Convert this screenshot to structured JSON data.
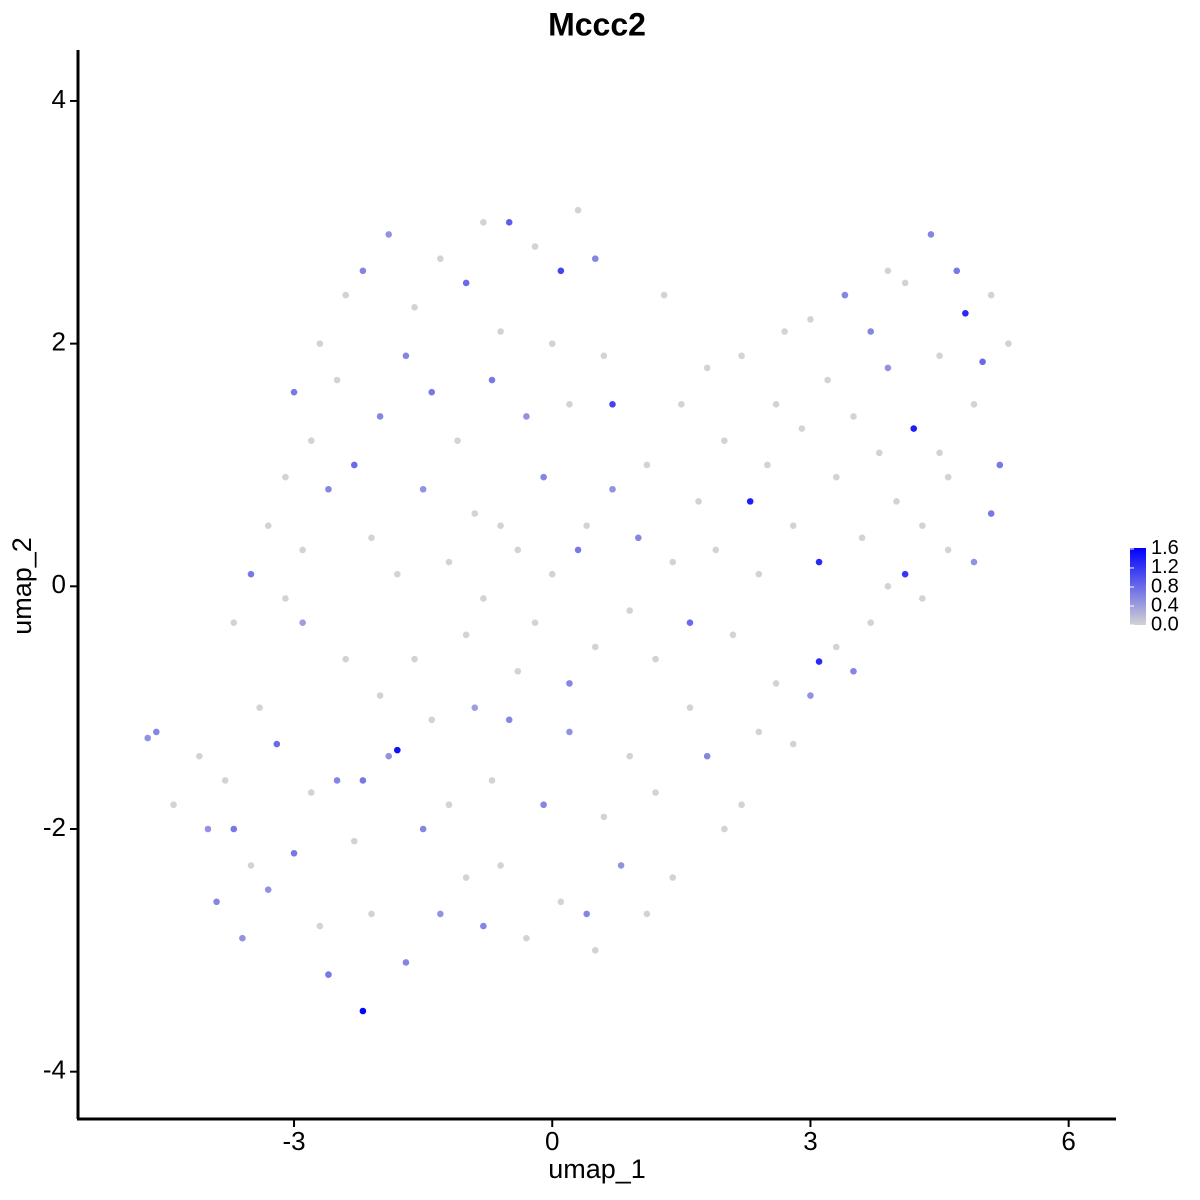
{
  "chart_data": {
    "type": "scatter",
    "title": "Mccc2",
    "x_label": "umap_1",
    "y_label": "umap_2",
    "xlim": [
      -5.51,
      6.55
    ],
    "xticks": [
      -3,
      0,
      3,
      6
    ],
    "ylim": [
      -4.39,
      4.42
    ],
    "yticks": [
      -4,
      -2,
      0,
      2,
      4
    ],
    "colorscale": [
      "#d3d3d3",
      "#0000ff"
    ],
    "clim": [
      0,
      1.62
    ],
    "cticks": [
      {
        "value": 0,
        "label": "0.0"
      },
      0.4,
      0.8,
      1.2,
      1.6
    ],
    "x": [
      -4.7,
      -4.6,
      -4.4,
      -4.1,
      -4.0,
      -3.9,
      -3.8,
      -3.7,
      -3.6,
      -3.5,
      -3.4,
      -3.3,
      -3.2,
      -3.1,
      -3.0,
      -2.9,
      -2.8,
      -2.7,
      -2.6,
      -2.5,
      -2.4,
      -2.3,
      -2.2,
      -2.2,
      -2.1,
      -2.0,
      -1.9,
      -1.8,
      -1.7,
      -1.6,
      -1.5,
      -1.4,
      -1.3,
      -1.2,
      -1.0,
      -0.9,
      -0.8,
      -0.7,
      -0.6,
      -0.5,
      -0.3,
      -0.1,
      0.1,
      0.2,
      0.4,
      0.5,
      0.6,
      0.8,
      0.9,
      1.1,
      1.2,
      1.4,
      1.6,
      1.8,
      2.0,
      2.2,
      2.4,
      2.6,
      2.8,
      3.0,
      3.1,
      3.3,
      3.5,
      3.7,
      3.9,
      4.1,
      4.3,
      4.6,
      4.9,
      5.1,
      -3.7,
      -3.5,
      -3.3,
      -3.1,
      -3.0,
      -2.9,
      -2.8,
      -2.7,
      -2.6,
      -2.5,
      -2.4,
      -2.3,
      -2.2,
      -2.1,
      -2.0,
      -1.9,
      -1.8,
      -1.7,
      -1.6,
      -1.5,
      -1.4,
      -1.3,
      -1.2,
      -1.1,
      -1.0,
      -0.9,
      -0.8,
      -0.7,
      -0.6,
      -0.5,
      -0.4,
      -0.3,
      -0.2,
      -0.1,
      0.0,
      0.1,
      0.2,
      0.3,
      0.4,
      0.5,
      0.6,
      0.7,
      -1.0,
      -0.8,
      -0.6,
      -0.4,
      -0.2,
      0,
      0.2,
      0.3,
      0.5,
      0.7,
      0.9,
      1.0,
      1.1,
      1.2,
      1.3,
      1.4,
      1.5,
      1.6,
      1.7,
      1.8,
      1.9,
      2.0,
      2.1,
      2.2,
      2.3,
      2.4,
      2.5,
      2.6,
      2.7,
      2.8,
      2.9,
      3.0,
      3.1,
      3.2,
      3.3,
      3.4,
      3.5,
      3.6,
      3.7,
      3.8,
      3.9,
      4.0,
      4.1,
      4.2,
      4.3,
      4.4,
      4.5,
      4.6,
      4.7,
      4.8,
      4.9,
      5.0,
      5.1,
      5.2,
      5.3,
      4.5,
      3.9
    ],
    "y": [
      -1.25,
      -1.2,
      -1.8,
      -1.4,
      -2.0,
      -2.6,
      -1.6,
      -2.0,
      -2.9,
      -2.3,
      -1.0,
      -2.5,
      -1.3,
      -0.1,
      -2.2,
      -0.3,
      -1.7,
      -2.8,
      -3.2,
      -1.6,
      -0.6,
      -2.1,
      -3.5,
      -1.6,
      -2.7,
      -0.9,
      -1.4,
      -1.35,
      -3.1,
      -0.6,
      -2.0,
      -1.1,
      -2.7,
      -1.8,
      -2.4,
      -1.0,
      -2.8,
      -1.6,
      -2.3,
      -1.1,
      -2.9,
      -1.8,
      -2.6,
      -1.2,
      -2.7,
      -3.0,
      -1.9,
      -2.3,
      -1.4,
      -2.7,
      -1.7,
      -2.4,
      -1.0,
      -1.4,
      -2.0,
      -1.8,
      -1.2,
      -0.8,
      -1.3,
      -0.9,
      -0.62,
      -0.5,
      -0.7,
      -0.3,
      0,
      0.1,
      -0.1,
      0.3,
      0.2,
      0.6,
      -0.3,
      0.1,
      0.5,
      0.9,
      1.6,
      0.3,
      1.2,
      2.0,
      0.8,
      1.7,
      2.4,
      1.0,
      2.6,
      0.4,
      1.4,
      2.9,
      0.1,
      1.9,
      2.3,
      0.8,
      1.6,
      2.7,
      0.2,
      1.2,
      2.5,
      0.6,
      3.0,
      1.7,
      2.1,
      3.0,
      0.3,
      1.4,
      2.8,
      0.9,
      2.0,
      2.6,
      1.5,
      3.1,
      0.5,
      2.7,
      1.9,
      1.5,
      -0.4,
      -0.1,
      0.5,
      -0.7,
      -0.3,
      0.1,
      -0.8,
      0.3,
      -0.5,
      0.8,
      -0.2,
      0.4,
      1.0,
      -0.6,
      2.4,
      0.2,
      1.5,
      -0.3,
      0.7,
      1.8,
      0.3,
      1.2,
      -0.4,
      1.9,
      0.7,
      0.1,
      1.0,
      1.5,
      2.1,
      0.5,
      1.3,
      2.2,
      0.2,
      1.7,
      0.9,
      2.4,
      1.4,
      0.4,
      2.1,
      1.1,
      1.8,
      0.7,
      2.5,
      1.3,
      0.5,
      2.9,
      1.9,
      0.9,
      2.6,
      2.25,
      1.5,
      1.85,
      2.4,
      1.0,
      2.0,
      1.1,
      2.6
    ],
    "values": [
      0.5,
      0.6,
      0,
      0,
      0.5,
      0.6,
      0,
      0.7,
      0.5,
      0,
      0,
      0.5,
      0.8,
      0,
      0.7,
      0.4,
      0,
      0,
      0.7,
      0.6,
      0,
      0,
      1.6,
      0.7,
      0,
      0,
      0.5,
      1.5,
      0.6,
      0,
      0.6,
      0,
      0.5,
      0,
      0,
      0.4,
      0.6,
      0,
      0,
      0.6,
      0,
      0.6,
      0,
      0.5,
      0.6,
      0,
      0,
      0.5,
      0,
      0,
      0,
      0,
      0,
      0.6,
      0,
      0,
      0,
      0,
      0,
      0.5,
      1.3,
      0,
      0.6,
      0,
      0,
      1.2,
      0,
      0,
      0.5,
      0.7,
      0,
      0.7,
      0,
      0,
      0.7,
      0,
      0,
      0,
      0.6,
      0,
      0,
      0.8,
      0.6,
      0,
      0.6,
      0.5,
      0,
      0.6,
      0,
      0.5,
      0.7,
      0,
      0,
      0,
      0.8,
      0,
      0,
      0.7,
      0,
      0.9,
      0,
      0.5,
      0,
      0.6,
      0,
      1.1,
      0,
      0,
      0,
      0.6,
      0,
      1.1,
      0,
      0,
      0,
      0,
      0,
      0,
      0.6,
      0.7,
      0,
      0.5,
      0,
      0.6,
      0,
      0,
      0,
      0,
      0,
      0.8,
      0,
      0,
      0,
      0,
      0,
      0,
      1.4,
      0,
      0,
      0,
      0,
      0,
      0,
      0,
      1.3,
      0,
      0,
      0.6,
      0,
      0,
      0.6,
      0,
      0.5,
      0,
      0,
      1.4,
      0,
      0.6,
      0,
      0,
      0.7,
      1.3,
      0,
      0.8,
      0,
      0.7,
      0,
      0,
      0
    ]
  }
}
